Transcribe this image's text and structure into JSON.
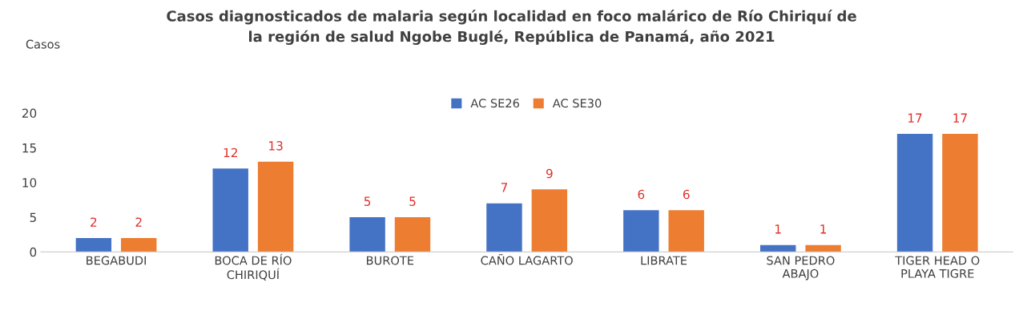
{
  "chart_data": {
    "type": "bar",
    "title": "Casos diagnosticados de malaria según localidad en foco malárico de Río Chiriquí de\nla región de salud Ngobe Buglé, República de Panamá, año 2021",
    "annotations": [
      "Casos"
    ],
    "categories": [
      "BEGABUDI",
      "BOCA DE RÍO\nCHIRIQUÍ",
      "BUROTE",
      "CAÑO LAGARTO",
      "LIBRATE",
      "SAN PEDRO\nABAJO",
      "TIGER HEAD O\nPLAYA TIGRE"
    ],
    "series": [
      {
        "name": "AC SE26",
        "color": "#4472c4",
        "values": [
          2,
          12,
          5,
          7,
          6,
          1,
          17
        ]
      },
      {
        "name": "AC SE30",
        "color": "#ed7d31",
        "values": [
          2,
          13,
          5,
          9,
          6,
          1,
          17
        ]
      }
    ],
    "ylim": [
      0,
      20
    ],
    "yticks": [
      0,
      5,
      10,
      15,
      20
    ],
    "grid": false,
    "legend": "top",
    "data_labels": true
  }
}
